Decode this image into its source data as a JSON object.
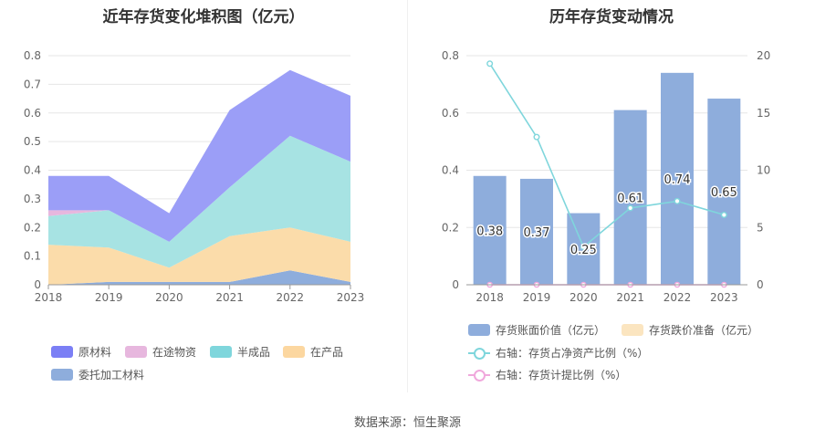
{
  "left_chart": {
    "title": "近年存货变化堆积图（亿元）",
    "legend_labels": [
      "原材料",
      "在途物资",
      "半成品",
      "在产品",
      "委托加工材料"
    ]
  },
  "right_chart": {
    "title": "历年存货变动情况",
    "legend_labels": [
      "存货账面价值（亿元）",
      "存货跌价准备（亿元）",
      "右轴：存货占净资产比例（%）",
      "右轴：存货计提比例（%）"
    ]
  },
  "footer": {
    "source": "数据来源：恒生聚源"
  },
  "chart_data": [
    {
      "type": "area",
      "title": "近年存货变化堆积图（亿元）",
      "stacked": true,
      "x": [
        "2018",
        "2019",
        "2020",
        "2021",
        "2022",
        "2023"
      ],
      "ylim": [
        0,
        0.8
      ],
      "yticks": [
        "0",
        "0.1",
        "0.2",
        "0.3",
        "0.4",
        "0.5",
        "0.6",
        "0.7",
        "0.8"
      ],
      "legend_position": "bottom",
      "series": [
        {
          "name": "委托加工材料",
          "color": "#8eaddc",
          "values": [
            0.0,
            0.01,
            0.01,
            0.01,
            0.05,
            0.01
          ]
        },
        {
          "name": "在产品",
          "color": "#fbdcaa",
          "values": [
            0.14,
            0.12,
            0.05,
            0.16,
            0.15,
            0.14
          ]
        },
        {
          "name": "半成品",
          "color": "#a7e3e3",
          "values": [
            0.1,
            0.13,
            0.09,
            0.17,
            0.32,
            0.28
          ]
        },
        {
          "name": "在途物资",
          "color": "#e7b7de",
          "values": [
            0.02,
            0.0,
            0.0,
            0.0,
            0.0,
            0.0
          ]
        },
        {
          "name": "原材料",
          "color": "#9b9ef7",
          "values": [
            0.12,
            0.12,
            0.1,
            0.27,
            0.23,
            0.23
          ]
        }
      ]
    },
    {
      "type": "bar",
      "title": "历年存货变动情况",
      "categories": [
        "2018",
        "2019",
        "2020",
        "2021",
        "2022",
        "2023"
      ],
      "ylim": [
        0,
        0.8
      ],
      "yticks": [
        "0",
        "0.2",
        "0.4",
        "0.6",
        "0.8"
      ],
      "y2lim": [
        0,
        20
      ],
      "y2ticks": [
        "0",
        "5",
        "10",
        "15",
        "20"
      ],
      "legend_position": "bottom",
      "series": [
        {
          "name": "存货账面价值（亿元）",
          "type": "bar",
          "axis": "left",
          "color": "#8eaddc",
          "values": [
            0.38,
            0.37,
            0.25,
            0.61,
            0.74,
            0.65
          ],
          "labels": [
            "0.38",
            "0.37",
            "0.25",
            "0.61",
            "0.74",
            "0.65"
          ]
        },
        {
          "name": "存货跌价准备（亿元）",
          "type": "bar",
          "axis": "left",
          "color": "#fbe5c0",
          "values": [
            0,
            0,
            0,
            0,
            0,
            0
          ]
        },
        {
          "name": "右轴：存货占净资产比例（%）",
          "type": "line",
          "axis": "right",
          "color": "#7fd6dc",
          "values": [
            19.3,
            12.9,
            3.3,
            6.7,
            7.3,
            6.1
          ]
        },
        {
          "name": "右轴：存货计提比例（%）",
          "type": "line",
          "axis": "right",
          "color": "#f0a8dc",
          "values": [
            0,
            0,
            0,
            0,
            0,
            0
          ]
        }
      ]
    }
  ]
}
